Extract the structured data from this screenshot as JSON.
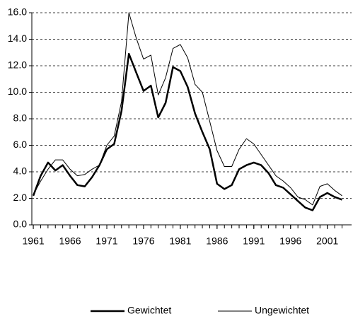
{
  "chart_data": {
    "type": "line",
    "x": [
      1961,
      1962,
      1963,
      1964,
      1965,
      1966,
      1967,
      1968,
      1969,
      1970,
      1971,
      1972,
      1973,
      1974,
      1975,
      1976,
      1977,
      1978,
      1979,
      1980,
      1981,
      1982,
      1983,
      1984,
      1985,
      1986,
      1987,
      1988,
      1989,
      1990,
      1991,
      1992,
      1993,
      1994,
      1995,
      1996,
      1997,
      1998,
      1999,
      2000,
      2001,
      2002,
      2003
    ],
    "series": [
      {
        "name": "Gewichtet",
        "color": "#000000",
        "values": [
          2.2,
          3.7,
          4.7,
          4.1,
          4.5,
          3.7,
          3.0,
          2.9,
          3.6,
          4.5,
          5.7,
          6.1,
          8.6,
          12.9,
          11.5,
          10.1,
          10.5,
          8.1,
          9.2,
          11.9,
          11.6,
          10.4,
          8.4,
          7.0,
          5.7,
          3.1,
          2.7,
          3.0,
          4.2,
          4.5,
          4.7,
          4.5,
          3.9,
          3.0,
          2.8,
          2.3,
          1.8,
          1.3,
          1.1,
          2.1,
          2.4,
          2.1,
          1.9
        ]
      },
      {
        "name": "Ungewichtet",
        "color": "#000000",
        "values": [
          2.3,
          3.3,
          4.2,
          4.9,
          4.9,
          4.2,
          3.7,
          3.8,
          4.2,
          4.5,
          6.0,
          6.7,
          9.3,
          16.0,
          14.1,
          12.5,
          12.8,
          9.8,
          11.1,
          13.3,
          13.6,
          12.6,
          10.6,
          10.0,
          7.8,
          5.6,
          4.4,
          4.4,
          5.7,
          6.5,
          6.1,
          5.3,
          4.5,
          3.7,
          3.3,
          2.8,
          2.1,
          1.9,
          1.5,
          2.9,
          3.1,
          2.6,
          2.2
        ]
      }
    ],
    "xlim": [
      1960.8,
      2004.3
    ],
    "xticks": [
      1961,
      1966,
      1971,
      1976,
      1981,
      1986,
      1991,
      1996,
      2001
    ],
    "ylim": [
      0,
      16
    ],
    "yticks": [
      {
        "value": 0,
        "label": "0.0"
      },
      {
        "value": 2,
        "label": "2.0"
      },
      {
        "value": 4,
        "label": "4.0"
      },
      {
        "value": 6,
        "label": "6.0"
      },
      {
        "value": 8,
        "label": "8.0"
      },
      {
        "value": 10,
        "label": "10.0"
      },
      {
        "value": 12,
        "label": "12.0"
      },
      {
        "value": 14,
        "label": "14.0"
      },
      {
        "value": 16,
        "label": "16.0"
      }
    ],
    "grid": true,
    "legend": "bottom"
  }
}
